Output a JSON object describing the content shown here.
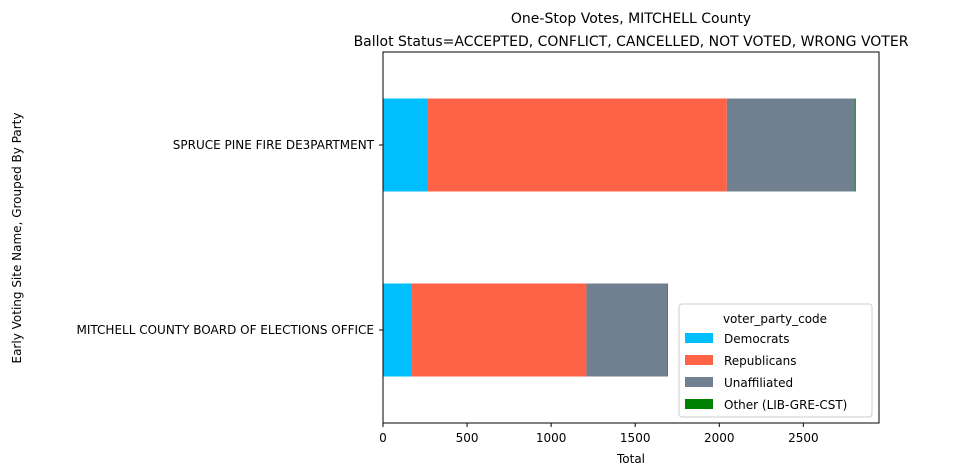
{
  "chart_data": {
    "type": "bar",
    "orientation": "horizontal",
    "stacked": true,
    "title": "One-Stop Votes, MITCHELL County",
    "subtitle": "Ballot Status=ACCEPTED, CONFLICT, CANCELLED, NOT VOTED, WRONG VOTER",
    "xlabel": "Total",
    "ylabel": "Early Voting Site Name, Grouped By Party",
    "xlim": [
      0,
      2950
    ],
    "xticks": [
      0,
      500,
      1000,
      1500,
      2000,
      2500
    ],
    "categories": [
      "SPRUCE PINE FIRE DE3PARTMENT",
      "MITCHELL COUNTY BOARD OF ELECTIONS OFFICE"
    ],
    "series": [
      {
        "name": "Democrats",
        "color": "#00bfff",
        "values": [
          265,
          170
        ]
      },
      {
        "name": "Republicans",
        "color": "#ff6347",
        "values": [
          1780,
          1040
        ]
      },
      {
        "name": "Unaffiliated",
        "color": "#708090",
        "values": [
          760,
          480
        ]
      },
      {
        "name": "Other (LIB-GRE-CST)",
        "color": "#008000",
        "values": [
          7,
          2
        ]
      }
    ],
    "legend": {
      "title": "voter_party_code",
      "position": "lower-right"
    },
    "grid": false
  }
}
